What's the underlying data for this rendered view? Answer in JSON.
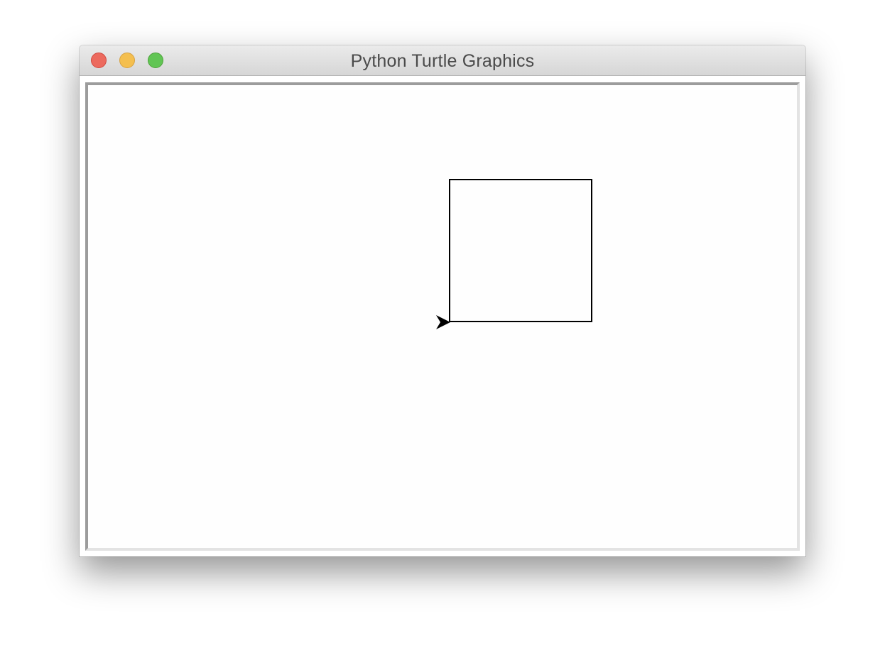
{
  "window": {
    "title": "Python Turtle Graphics",
    "controls": {
      "close": "close-button",
      "minimize": "minimize-button",
      "zoom": "zoom-button"
    },
    "colors": {
      "close": "#ec6a5e",
      "minimize": "#f4bf4f",
      "zoom": "#61c554"
    }
  },
  "canvas": {
    "background": "#fefefe",
    "pen_color": "#000000",
    "shapes": [
      {
        "type": "square",
        "name": "drawn-square",
        "side": 200
      }
    ],
    "turtle": {
      "shape": "arrow",
      "heading": 0,
      "color": "#000000"
    }
  }
}
